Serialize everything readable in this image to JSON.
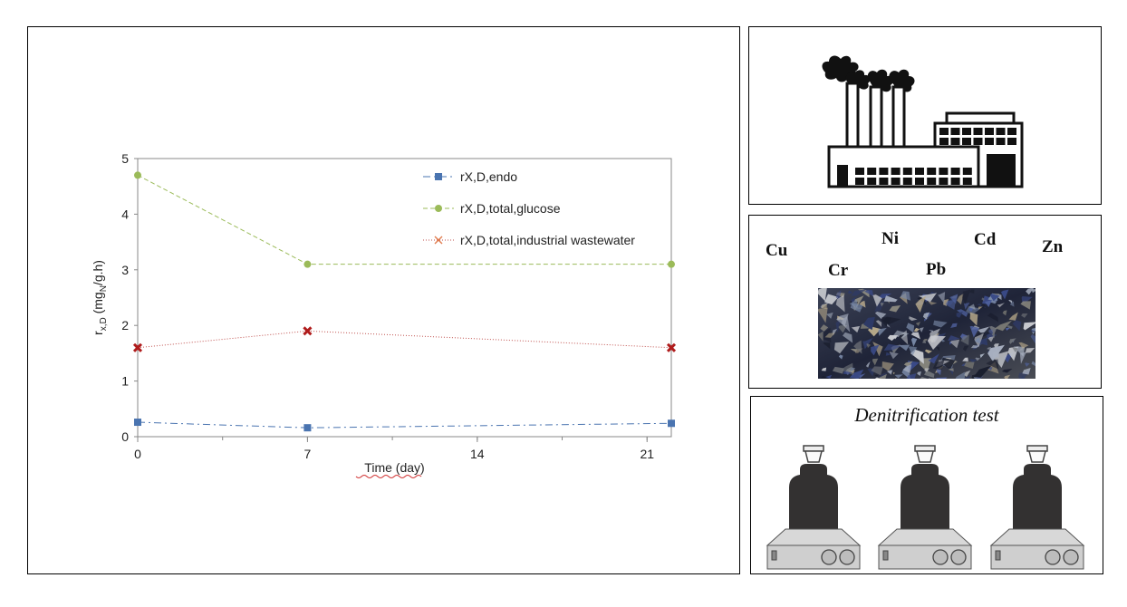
{
  "chart_data": {
    "type": "line",
    "x": [
      0,
      7,
      22
    ],
    "series": [
      {
        "name": "rX,D,endo",
        "values": [
          0.26,
          0.16,
          0.24
        ],
        "color": "#4a74b0",
        "marker": "square",
        "dash": "8 4 2 4"
      },
      {
        "name": "rX,D,total,glucose",
        "values": [
          4.7,
          3.1,
          3.1
        ],
        "color": "#9bbb59",
        "marker": "circle",
        "dash": "5 3"
      },
      {
        "name": "rX,D,total,industrial wastewater",
        "values": [
          1.6,
          1.9,
          1.6
        ],
        "color": "#c0504d",
        "marker": "x",
        "dash": "1 2",
        "marker_color": "#b01c1c"
      }
    ],
    "xlabel": "Time (day)",
    "ylabel_main": "r",
    "ylabel_sub": "x,D",
    "ylabel_unit_pre": " (mg",
    "ylabel_unit_sub": "N",
    "ylabel_unit_post": "/g.h)",
    "xlim": [
      0,
      22
    ],
    "ylim": [
      0,
      5
    ],
    "xticks": [
      0,
      7,
      14,
      21
    ],
    "yticks": [
      0,
      1,
      2,
      3,
      4,
      5
    ],
    "grid": false,
    "legend_position": "top-right"
  },
  "metals": [
    "Cu",
    "Cr",
    "Ni",
    "Pb",
    "Cd",
    "Zn"
  ],
  "test_panel": {
    "title": "Denitrification test"
  },
  "icons": {
    "factory": "factory-icon",
    "metal_scrap": "metal-scrap-image",
    "reactor": "reactor-bottle-icon"
  }
}
